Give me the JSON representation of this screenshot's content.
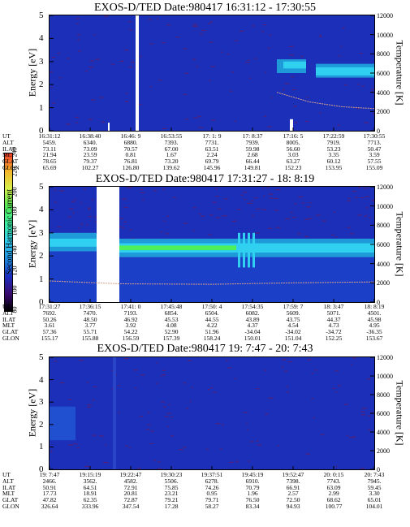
{
  "colors": {
    "background": "#1b2fb8",
    "noise": "#5a1d6e",
    "band_cyan": "#2fd0f0",
    "band_green": "#4ef05a",
    "band_teal": "#1f9ad8",
    "temp_line": "#d8a08a",
    "white_gap": "#ffffff"
  },
  "colorbar": {
    "label": "Second Harmonic Current",
    "ticks": [
      "80",
      "100",
      "120",
      "140",
      "160",
      "180",
      "200",
      "220",
      "240"
    ],
    "colors": [
      "#000000",
      "#3a0a70",
      "#1a2fc0",
      "#1f8fe0",
      "#2fd0f0",
      "#3cf0a0",
      "#55e855",
      "#d8f04a",
      "#f5b52a",
      "#f03a2a"
    ]
  },
  "chart_data": [
    {
      "type": "heatmap",
      "title": "EXOS-D/TED  Date:980417  16:31:12 - 17:30:55",
      "ylabel": "Energy [eV]",
      "y2label": "Temperature [K]",
      "ylim": [
        0,
        5
      ],
      "y2lim": [
        0,
        12000
      ],
      "yticks": [
        "0",
        "1",
        "2",
        "3",
        "4",
        "5"
      ],
      "y2ticks": [
        "0",
        "2000",
        "4000",
        "6000",
        "8000",
        "10000",
        "12000"
      ],
      "rows": [
        {
          "label": "UT",
          "values": [
            "16:31:12",
            "16:38:40",
            "16:46: 9",
            "16:53:55",
            "17: 1: 9",
            "17: 8:37",
            "17:16: 5",
            "17:22:59",
            "17:30:55"
          ]
        },
        {
          "label": "ALT",
          "values": [
            "5459.",
            "6340.",
            "6880.",
            "7393.",
            "7731.",
            "7939.",
            "8005.",
            "7919.",
            "7713."
          ]
        },
        {
          "label": "ILAT",
          "values": [
            "73.11",
            "73.09",
            "70.57",
            "67.00",
            "63.51",
            "59.98",
            "56.60",
            "53.23",
            "50.47"
          ]
        },
        {
          "label": "MLT",
          "values": [
            "21.94",
            "23.59",
            "0.81",
            "1.67",
            "2.24",
            "2.68",
            "3.03",
            "3.35",
            "3.59"
          ]
        },
        {
          "label": "GLAT",
          "values": [
            "78.65",
            "79.37",
            "76.81",
            "73.20",
            "69.79",
            "66.44",
            "63.27",
            "60.12",
            "57.55"
          ]
        },
        {
          "label": "GLON",
          "values": [
            "65.69",
            "102.27",
            "126.80",
            "139.62",
            "145.96",
            "149.81",
            "152.23",
            "153.95",
            "155.09"
          ]
        }
      ],
      "bands": [
        {
          "x": [
            0.72,
            0.8
          ],
          "y": [
            2.5,
            3.2
          ],
          "color": "cyan"
        },
        {
          "x": [
            0.82,
            1.0
          ],
          "y": [
            2.3,
            2.8
          ],
          "color": "cyan"
        }
      ],
      "gaps": [
        0.265,
        0.74
      ],
      "temperature": [
        {
          "x": 0.7,
          "y": 4000
        },
        {
          "x": 0.8,
          "y": 3000
        },
        {
          "x": 0.9,
          "y": 2500
        },
        {
          "x": 1.0,
          "y": 2300
        }
      ]
    },
    {
      "type": "heatmap",
      "title": "EXOS-D/TED  Date:980417  17:31:27 - 18: 8:19",
      "ylabel": "Energy [eV]",
      "y2label": "Temperature [K]",
      "ylim": [
        0,
        5
      ],
      "y2lim": [
        0,
        12000
      ],
      "yticks": [
        "0",
        "1",
        "2",
        "3",
        "4",
        "5"
      ],
      "y2ticks": [
        "0",
        "2000",
        "4000",
        "6000",
        "8000",
        "10000",
        "12000"
      ],
      "rows": [
        {
          "label": "UT",
          "values": [
            "17:31:27",
            "17:36:15",
            "17:41: 0",
            "17:45:48",
            "17:50: 4",
            "17:54:35",
            "17:59: 7",
            "18: 3:47",
            "18: 8:19"
          ]
        },
        {
          "label": "ALT",
          "values": [
            "7692.",
            "7470.",
            "7193.",
            "6854.",
            "6504.",
            "6082.",
            "5609.",
            "5071.",
            "4501."
          ]
        },
        {
          "label": "ILAT",
          "values": [
            "50.26",
            "48.50",
            "46.92",
            "45.53",
            "44.55",
            "43.89",
            "43.75",
            "44.37",
            "45.98"
          ]
        },
        {
          "label": "MLT",
          "values": [
            "3.61",
            "3.77",
            "3.92",
            "4.08",
            "4.22",
            "4.37",
            "4.54",
            "4.73",
            "4.95"
          ]
        },
        {
          "label": "GLAT",
          "values": [
            "57.36",
            "55.71",
            "54.22",
            "52.90",
            "51.96",
            "-34.04",
            "-34.02",
            "-34.72",
            "-36.35"
          ]
        },
        {
          "label": "GLON",
          "values": [
            "155.17",
            "155.88",
            "156.59",
            "157.39",
            "158.24",
            "150.01",
            "151.04",
            "152.25",
            "153.67"
          ]
        }
      ],
      "gaps": [
        [
          0.145,
          0.215
        ]
      ],
      "temperature": [
        {
          "x": 0.0,
          "y": 2200
        },
        {
          "x": 0.145,
          "y": 2000
        },
        {
          "x": 0.215,
          "y": 1900
        },
        {
          "x": 0.5,
          "y": 1850
        },
        {
          "x": 0.75,
          "y": 2000
        },
        {
          "x": 1.0,
          "y": 2100
        }
      ]
    },
    {
      "type": "heatmap",
      "title": "EXOS-D/TED  Date:980417  19: 7:47 - 20: 7:43",
      "ylabel": "Energy [eV]",
      "y2label": "Temperature [K]",
      "ylim": [
        0,
        5
      ],
      "y2lim": [
        0,
        12000
      ],
      "yticks": [
        "0",
        "1",
        "2",
        "3",
        "4",
        "5"
      ],
      "y2ticks": [
        "0",
        "2000",
        "4000",
        "6000",
        "8000",
        "10000",
        "12000"
      ],
      "rows": [
        {
          "label": "UT",
          "values": [
            "19: 7:47",
            "19:15:19",
            "19:22:47",
            "19:30:23",
            "19:37:51",
            "19:45:19",
            "19:52:47",
            "20: 0:15",
            "20: 7:43"
          ]
        },
        {
          "label": "ALT",
          "values": [
            "2466.",
            "3562.",
            "4582.",
            "5506.",
            "6278.",
            "6910.",
            "7398.",
            "7743.",
            "7945."
          ]
        },
        {
          "label": "ILAT",
          "values": [
            "50.91",
            "64.51",
            "72.91",
            "75.85",
            "74.26",
            "70.79",
            "66.91",
            "63.09",
            "59.45"
          ]
        },
        {
          "label": "MLT",
          "values": [
            "17.73",
            "18.91",
            "20.81",
            "23.21",
            "0.95",
            "1.96",
            "2.57",
            "2.99",
            "3.30"
          ]
        },
        {
          "label": "GLAT",
          "values": [
            "47.82",
            "62.35",
            "72.87",
            "79.21",
            "79.71",
            "76.50",
            "72.50",
            "68.62",
            "65.01"
          ]
        },
        {
          "label": "GLON",
          "values": [
            "326.64",
            "333.96",
            "347.54",
            "17.28",
            "58.27",
            "83.34",
            "94.93",
            "100.77",
            "104.01"
          ]
        }
      ],
      "temperature": []
    }
  ]
}
